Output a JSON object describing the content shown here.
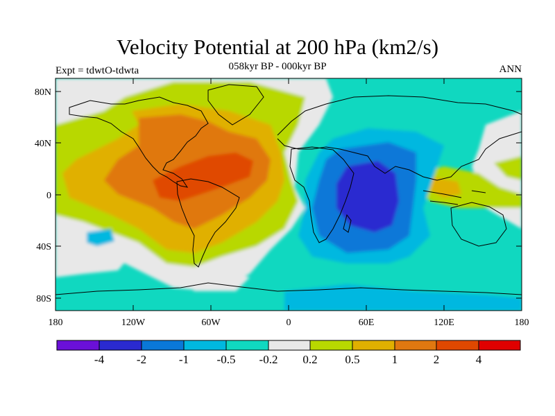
{
  "header": {
    "title": "Velocity Potential at 200 hPa (km2/s)",
    "subtitle": "058kyr BP - 000kyr BP",
    "left_label": "Expt = tdwtO-tdwta",
    "right_label": "ANN"
  },
  "axes": {
    "y_ticks": [
      "80N",
      "40N",
      "0",
      "40S",
      "80S"
    ],
    "x_ticks": [
      "180",
      "120W",
      "60W",
      "0",
      "60E",
      "120E",
      "180"
    ]
  },
  "colorbar": {
    "labels": [
      "-4",
      "-2",
      "-1",
      "-0.5",
      "-0.2",
      "0.2",
      "0.5",
      "1",
      "2",
      "4"
    ],
    "colors": [
      "#6a10d8",
      "#2a2ad0",
      "#0a78d8",
      "#00b8e0",
      "#10d8c0",
      "#e8e8e8",
      "#b8d800",
      "#e0b000",
      "#e07810",
      "#e04800",
      "#e00000"
    ]
  },
  "map": {
    "projection": "cylindrical equidistant",
    "lon_range": [
      -180,
      180
    ],
    "lat_range": [
      -90,
      90
    ]
  }
}
